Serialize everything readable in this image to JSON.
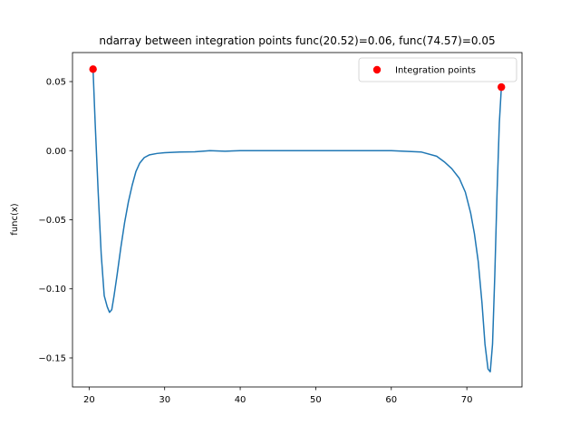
{
  "chart_data": {
    "type": "line",
    "title": "ndarray between integration points func(20.52)=0.06, func(74.57)=0.05",
    "xlabel": "",
    "ylabel": "func(x)",
    "xlim": [
      17.8,
      77.3
    ],
    "ylim": [
      -0.171,
      0.071
    ],
    "xticks": [
      20,
      30,
      40,
      50,
      60,
      70
    ],
    "yticks": [
      -0.15,
      -0.1,
      -0.05,
      0.0,
      0.05
    ],
    "ytick_labels": [
      "−0.15",
      "−0.10",
      "−0.05",
      "0.00",
      "0.05"
    ],
    "grid": false,
    "legend": {
      "placement": "top-right",
      "entries": [
        "Integration points"
      ]
    },
    "series": [
      {
        "color": "#1f77b4",
        "x": [
          20.52,
          20.8,
          21.2,
          21.6,
          22.0,
          22.4,
          22.7,
          23.0,
          23.3,
          23.7,
          24.2,
          24.7,
          25.2,
          25.7,
          26.2,
          26.7,
          27.3,
          28.0,
          29.0,
          30.0,
          32.0,
          34.0,
          36.0,
          38.0,
          40.0,
          45.0,
          50.0,
          55.0,
          60.0,
          64.0,
          66.0,
          67.0,
          68.0,
          69.0,
          69.8,
          70.5,
          71.0,
          71.5,
          72.0,
          72.4,
          72.8,
          73.1,
          73.4,
          73.7,
          74.0,
          74.3,
          74.57
        ],
        "y": [
          0.059,
          0.02,
          -0.03,
          -0.075,
          -0.105,
          -0.113,
          -0.117,
          -0.115,
          -0.105,
          -0.09,
          -0.07,
          -0.052,
          -0.037,
          -0.025,
          -0.015,
          -0.009,
          -0.005,
          -0.003,
          -0.002,
          -0.0015,
          -0.001,
          -0.0008,
          0.0,
          -0.0004,
          0.0,
          0.0,
          0.0,
          0.0,
          0.0,
          -0.001,
          -0.004,
          -0.008,
          -0.013,
          -0.02,
          -0.03,
          -0.045,
          -0.06,
          -0.08,
          -0.11,
          -0.14,
          -0.158,
          -0.16,
          -0.14,
          -0.09,
          -0.03,
          0.02,
          0.046
        ]
      }
    ],
    "scatter": {
      "name": "Integration points",
      "color": "#ff0000",
      "points": [
        {
          "x": 20.52,
          "y": 0.059
        },
        {
          "x": 74.57,
          "y": 0.046
        }
      ]
    }
  }
}
